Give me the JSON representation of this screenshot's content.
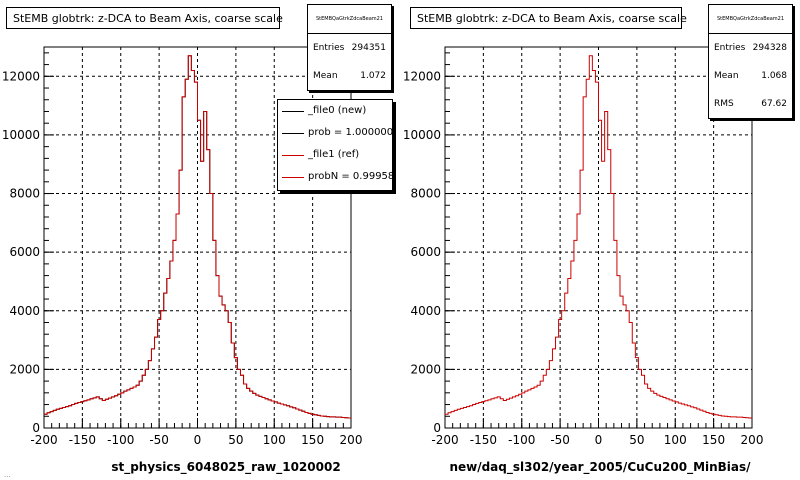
{
  "chart_data": [
    {
      "type": "bar",
      "title": "StEMB globtrk: z-DCA to Beam Axis, coarse scale",
      "xlabel": "st_physics_6048025_raw_1020002",
      "ylabel": "",
      "xlim": [
        -200,
        200
      ],
      "ylim": [
        0,
        13000
      ],
      "xticks": [
        "-200",
        "-150",
        "-100",
        "-50",
        "0",
        "50",
        "100",
        "150",
        "200"
      ],
      "yticks": [
        "0",
        "2000",
        "4000",
        "6000",
        "8000",
        "10000",
        "12000"
      ],
      "grid": true,
      "stats": {
        "name": "StEMBQaGtrkZdcaBeam21",
        "entries_label": "Entries",
        "entries": "294351",
        "mean_label": "Mean",
        "mean": "1.072"
      },
      "legend": [
        {
          "label": "_file0 (new)",
          "color": "#000000"
        },
        {
          "label": "prob = 1.000000",
          "color": "#000000"
        },
        {
          "label": "_file1 (ref)",
          "color": "#cc0000"
        },
        {
          "label": "probN = 0.999580",
          "color": "#cc0000"
        }
      ],
      "legend_position": "top-right",
      "series": [
        {
          "name": "_file0 (new)",
          "color": "#000000",
          "values": []
        },
        {
          "name": "_file1 (ref)",
          "color": "#cc0000",
          "values": []
        }
      ]
    },
    {
      "type": "bar",
      "title": "StEMB globtrk: z-DCA to Beam Axis, coarse scale",
      "xlabel": "new/daq_sl302/year_2005/CuCu200_MinBias/",
      "ylabel": "",
      "xlim": [
        -200,
        200
      ],
      "ylim": [
        0,
        13000
      ],
      "xticks": [
        "-200",
        "-150",
        "-100",
        "-50",
        "0",
        "50",
        "100",
        "150",
        "200"
      ],
      "yticks": [
        "0",
        "2000",
        "4000",
        "6000",
        "8000",
        "10000",
        "12000"
      ],
      "grid": true,
      "stats": {
        "name": "StEMBQaGtrkZdcaBeam21",
        "entries_label": "Entries",
        "entries": "294328",
        "mean_label": "Mean",
        "mean": "1.068",
        "rms_label": "RMS",
        "rms": "67.62"
      },
      "series": [
        {
          "name": "",
          "color": "#cc0000",
          "values": []
        }
      ]
    }
  ],
  "hist_bins": {
    "x_low": -200,
    "x_high": 200,
    "bin_width": 4,
    "values": [
      470,
      520,
      560,
      600,
      640,
      670,
      700,
      730,
      760,
      800,
      840,
      870,
      900,
      930,
      960,
      1000,
      1030,
      1060,
      1000,
      940,
      980,
      1020,
      1060,
      1100,
      1150,
      1200,
      1260,
      1300,
      1350,
      1400,
      1460,
      1600,
      1800,
      2000,
      2300,
      2700,
      3100,
      3700,
      4000,
      4600,
      5100,
      5700,
      6400,
      7300,
      8800,
      11300,
      11900,
      12700,
      12200,
      11800,
      10500,
      9100,
      10800,
      9500,
      8000,
      6400,
      5200,
      4500,
      4200,
      4000,
      3600,
      2900,
      2400,
      2000,
      1800,
      1500,
      1350,
      1260,
      1180,
      1120,
      1080,
      1040,
      1000,
      960,
      920,
      890,
      850,
      820,
      790,
      760,
      720,
      690,
      650,
      610,
      570,
      530,
      500,
      470,
      450,
      430,
      410,
      400,
      390,
      380,
      380,
      370,
      370,
      360,
      350,
      340
    ]
  },
  "stray_text": "..."
}
